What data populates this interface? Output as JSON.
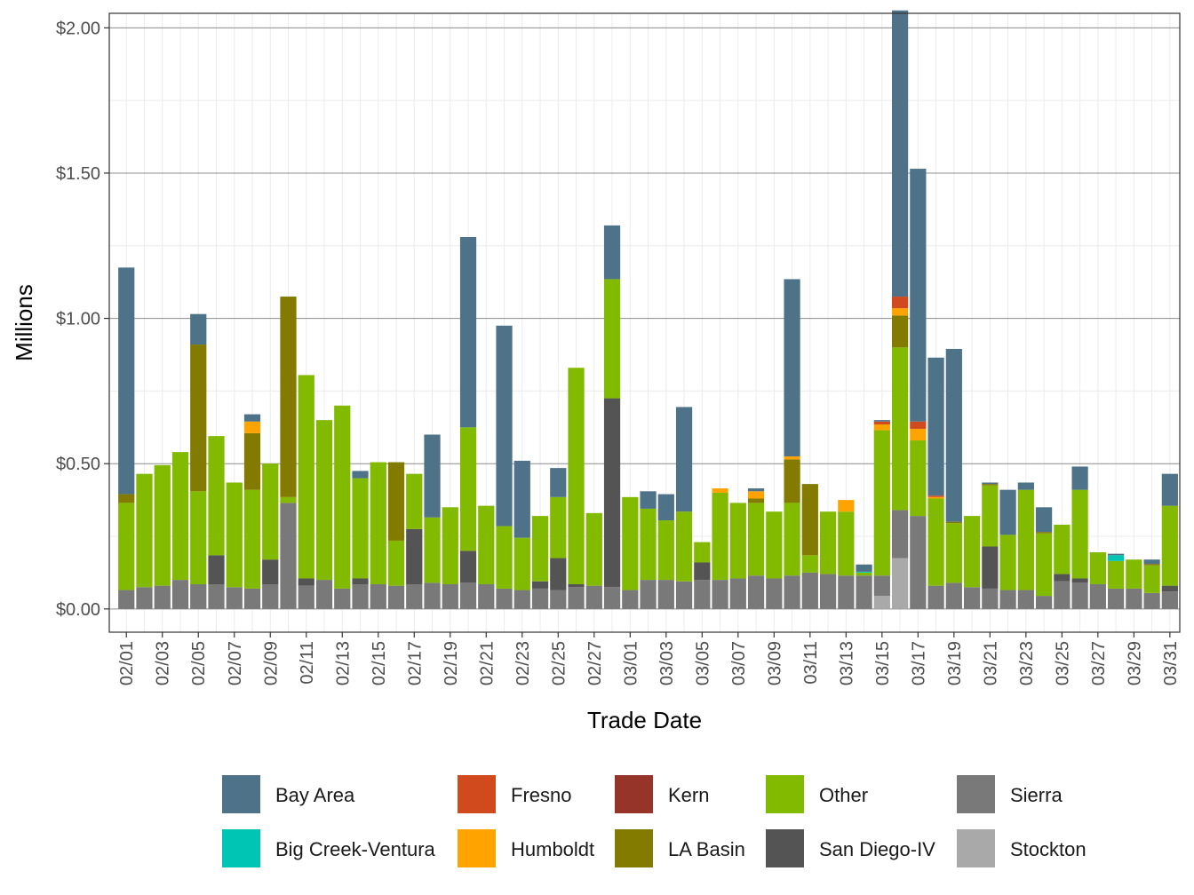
{
  "chart_data": {
    "type": "bar",
    "stacked": true,
    "xlabel": "Trade Date",
    "ylabel": "Millions",
    "ylim": [
      -0.08,
      2.05
    ],
    "y_ticks": [
      0,
      0.5,
      1.0,
      1.5,
      2.0
    ],
    "y_tick_labels": [
      "$0.00",
      "$0.50",
      "$1.00",
      "$1.50",
      "$2.00"
    ],
    "grid": true,
    "legend_position": "bottom",
    "categories": [
      "02/01",
      "02/02",
      "02/03",
      "02/04",
      "02/05",
      "02/06",
      "02/07",
      "02/08",
      "02/09",
      "02/10",
      "02/11",
      "02/12",
      "02/13",
      "02/14",
      "02/15",
      "02/16",
      "02/17",
      "02/18",
      "02/19",
      "02/20",
      "02/21",
      "02/22",
      "02/23",
      "02/24",
      "02/25",
      "02/26",
      "02/27",
      "02/28",
      "03/01",
      "03/02",
      "03/03",
      "03/04",
      "03/05",
      "03/06",
      "03/07",
      "03/08",
      "03/09",
      "03/10",
      "03/11",
      "03/12",
      "03/13",
      "03/14",
      "03/15",
      "03/16",
      "03/17",
      "03/18",
      "03/19",
      "03/20",
      "03/21",
      "03/22",
      "03/23",
      "03/24",
      "03/25",
      "03/26",
      "03/27",
      "03/28",
      "03/29",
      "03/30",
      "03/31"
    ],
    "x_tick_labels": [
      "02/01",
      "02/03",
      "02/05",
      "02/07",
      "02/09",
      "02/11",
      "02/13",
      "02/15",
      "02/17",
      "02/19",
      "02/21",
      "02/23",
      "02/25",
      "02/27",
      "03/01",
      "03/03",
      "03/05",
      "03/07",
      "03/09",
      "03/11",
      "03/13",
      "03/15",
      "03/17",
      "03/19",
      "03/21",
      "03/23",
      "03/25",
      "03/27",
      "03/29",
      "03/31"
    ],
    "series": [
      {
        "name": "Stockton",
        "color": "#A9A9A9",
        "values": [
          0,
          0,
          0,
          0,
          0,
          0,
          0,
          0,
          0,
          0,
          0,
          0,
          0,
          0,
          0,
          0,
          0,
          0,
          0,
          0,
          0,
          0,
          0,
          0,
          0,
          0,
          0,
          0,
          0,
          0,
          0,
          0,
          0,
          0,
          0,
          0,
          0,
          0,
          0,
          0,
          0,
          0,
          0.045,
          0.175,
          0,
          0,
          0,
          0,
          0,
          0,
          0,
          0,
          0,
          0,
          0,
          0,
          0,
          0,
          0
        ]
      },
      {
        "name": "Sierra",
        "color": "#797979",
        "values": [
          0.065,
          0.075,
          0.08,
          0.1,
          0.085,
          0.085,
          0.075,
          0.07,
          0.085,
          0.365,
          0.08,
          0.1,
          0.07,
          0.085,
          0.085,
          0.08,
          0.085,
          0.09,
          0.085,
          0.09,
          0.085,
          0.07,
          0.065,
          0.07,
          0.065,
          0.075,
          0.08,
          0.075,
          0.065,
          0.1,
          0.1,
          0.095,
          0.1,
          0.1,
          0.105,
          0.115,
          0.105,
          0.115,
          0.125,
          0.12,
          0.115,
          0.115,
          0.07,
          0.165,
          0.32,
          0.08,
          0.09,
          0.075,
          0.07,
          0.065,
          0.065,
          0.045,
          0.095,
          0.09,
          0.085,
          0.07,
          0.07,
          0.055,
          0.06
        ]
      },
      {
        "name": "San Diego-IV",
        "color": "#545454",
        "values": [
          0,
          0,
          0,
          0,
          0,
          0.1,
          0,
          0,
          0.085,
          0,
          0.025,
          0,
          0,
          0.02,
          0,
          0,
          0.19,
          0,
          0,
          0.11,
          0,
          0,
          0,
          0.025,
          0.11,
          0.01,
          0,
          0.65,
          0,
          0,
          0,
          0,
          0.06,
          0,
          0,
          0,
          0,
          0,
          0,
          0,
          0,
          0,
          0,
          0,
          0,
          0,
          0,
          0,
          0.145,
          0,
          0,
          0,
          0.025,
          0.015,
          0,
          0,
          0,
          0,
          0.02
        ]
      },
      {
        "name": "Other",
        "color": "#82BA00",
        "values": [
          0.3,
          0.39,
          0.415,
          0.44,
          0.32,
          0.41,
          0.36,
          0.34,
          0.33,
          0.02,
          0.7,
          0.55,
          0.63,
          0.345,
          0.42,
          0.155,
          0.19,
          0.225,
          0.265,
          0.425,
          0.27,
          0.215,
          0.18,
          0.225,
          0.21,
          0.745,
          0.25,
          0.41,
          0.32,
          0.245,
          0.205,
          0.24,
          0.07,
          0.3,
          0.26,
          0.25,
          0.23,
          0.25,
          0.06,
          0.215,
          0.22,
          0.01,
          0.5,
          0.56,
          0.26,
          0.3,
          0.205,
          0.245,
          0.21,
          0.19,
          0.345,
          0.215,
          0.17,
          0.305,
          0.11,
          0.095,
          0.1,
          0.095,
          0.275
        ]
      },
      {
        "name": "Big Creek-Ventura",
        "color": "#00C5B5",
        "values": [
          0,
          0,
          0,
          0,
          0,
          0,
          0,
          0,
          0,
          0,
          0,
          0,
          0,
          0,
          0,
          0,
          0,
          0,
          0,
          0,
          0,
          0,
          0,
          0,
          0,
          0,
          0,
          0,
          0,
          0,
          0,
          0,
          0,
          0,
          0,
          0,
          0,
          0,
          0,
          0,
          0,
          0.003,
          0,
          0,
          0,
          0,
          0,
          0,
          0,
          0,
          0,
          0,
          0,
          0,
          0,
          0.02,
          0,
          0,
          0
        ]
      },
      {
        "name": "LA Basin",
        "color": "#837A00",
        "values": [
          0.03,
          0,
          0,
          0,
          0.505,
          0,
          0,
          0.195,
          0,
          0.69,
          0,
          0,
          0,
          0,
          0,
          0.27,
          0,
          0,
          0,
          0,
          0,
          0,
          0,
          0,
          0,
          0,
          0,
          0,
          0,
          0,
          0,
          0,
          0,
          0,
          0,
          0.015,
          0,
          0.15,
          0.245,
          0,
          0,
          0,
          0,
          0.11,
          0,
          0,
          0.005,
          0,
          0.005,
          0,
          0,
          0.005,
          0,
          0,
          0,
          0,
          0,
          0.005,
          0
        ]
      },
      {
        "name": "Humboldt",
        "color": "#FFA300",
        "values": [
          0,
          0,
          0,
          0,
          0,
          0,
          0,
          0.04,
          0,
          0,
          0,
          0,
          0,
          0,
          0,
          0,
          0,
          0,
          0,
          0,
          0,
          0,
          0,
          0,
          0,
          0,
          0,
          0,
          0,
          0,
          0,
          0,
          0,
          0.015,
          0,
          0.025,
          0,
          0.01,
          0,
          0,
          0.04,
          0,
          0.02,
          0.025,
          0.04,
          0.005,
          0,
          0,
          0,
          0,
          0,
          0,
          0,
          0,
          0,
          0,
          0,
          0,
          0
        ]
      },
      {
        "name": "Fresno",
        "color": "#D04A1E",
        "values": [
          0,
          0,
          0,
          0,
          0,
          0,
          0,
          0,
          0,
          0,
          0,
          0,
          0,
          0,
          0,
          0,
          0,
          0,
          0,
          0,
          0,
          0,
          0,
          0,
          0,
          0,
          0,
          0,
          0,
          0,
          0,
          0,
          0,
          0,
          0,
          0,
          0,
          0,
          0,
          0,
          0,
          0,
          0.01,
          0.04,
          0.025,
          0.005,
          0,
          0,
          0,
          0,
          0,
          0,
          0,
          0,
          0,
          0,
          0,
          0,
          0
        ]
      },
      {
        "name": "Kern",
        "color": "#96342A",
        "values": [
          0,
          0,
          0,
          0,
          0,
          0,
          0,
          0,
          0,
          0,
          0,
          0,
          0,
          0,
          0,
          0,
          0,
          0,
          0,
          0,
          0,
          0,
          0,
          0,
          0,
          0,
          0,
          0,
          0,
          0,
          0,
          0,
          0,
          0,
          0,
          0,
          0,
          0,
          0,
          0,
          0,
          0,
          0,
          0,
          0,
          0,
          0,
          0,
          0,
          0,
          0,
          0,
          0,
          0,
          0,
          0,
          0,
          0,
          0
        ]
      },
      {
        "name": "Bay Area",
        "color": "#4E7388",
        "values": [
          0.78,
          0,
          0,
          0,
          0.105,
          0,
          0,
          0.025,
          0,
          0,
          0,
          0,
          0,
          0.025,
          0,
          0,
          0,
          0.285,
          0,
          0.655,
          0,
          0.69,
          0.265,
          0,
          0.1,
          0,
          0,
          0.185,
          0,
          0.06,
          0.09,
          0.36,
          0,
          0,
          0,
          0.01,
          0,
          0.61,
          0,
          0,
          0,
          0.025,
          0.005,
          0.985,
          0.87,
          0.475,
          0.595,
          0,
          0.005,
          0.155,
          0.025,
          0.085,
          0,
          0.08,
          0,
          0.005,
          0,
          0.015,
          0.11
        ]
      }
    ],
    "legend_order": [
      "Bay Area",
      "Fresno",
      "Kern",
      "Other",
      "Sierra",
      "Big Creek-Ventura",
      "Humboldt",
      "LA Basin",
      "San Diego-IV",
      "Stockton"
    ]
  }
}
